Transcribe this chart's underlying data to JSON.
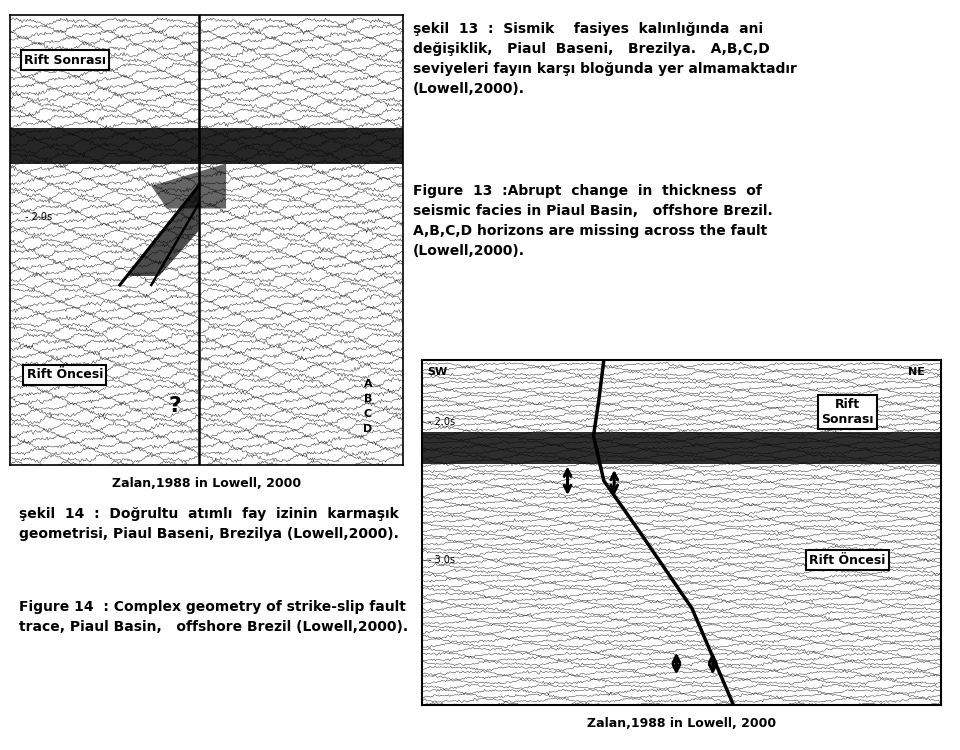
{
  "background_color": "#ffffff",
  "fig_width": 9.6,
  "fig_height": 7.5,
  "title_tr_bold": "şekil  13  :",
  "title_tr_rest": " Sismik    fasiyes  kalınlığında  ani\ndeğişiklik,   Piaul  Baseni,   Brezilya.   A,B,C,D\nseviyeleri fayın karşı bloğunda yer almamaktadır\n(Lowell,2000).",
  "title_tr_full": "şekil  13  :  Sismik    fasiyes  kalınlığında  ani\ndeğişiklik,   Piaul  Baseni,   Brezilya.   A,B,C,D\nseviyeleri fayın karşı bloğunda yer almamaktadır\n(Lowell,2000).",
  "title_en_bold": "Figure  13",
  "title_en_full": "Figure  13  :Abrupt  change  in  thickness  of\nseismic facies in Piaul Basin,   offshore Brezil.\nA,B,C,D horizons are missing across the fault\n(Lowell,2000).",
  "caption14_tr_full": "şekil  14  :  Doğrultu  atımlı  fay  izinin  karmaşık\ngeometrisi, Piaul Baseni, Brezilya (Lowell,2000).",
  "caption14_en_full": "Figure 14  : Complex geometry of strike-slip fault\ntrace, Piaul Basin,   offshore Brezil (Lowell,2000).",
  "credit1": "Zalan,1988 in Lowell, 2000",
  "credit2": "Zalan,1988 in Lowell, 2000",
  "label_rift_sonrasi_1": "Rift Sonrası",
  "label_rift_oncesi_1": "Rift Öncesi",
  "label_question": "?",
  "label_abcd": "A\nB\nC\nD",
  "label_sw": "SW",
  "label_ne": "NE",
  "label_rift_sonrasi_2": "Rift\nSonrası",
  "label_rift_oncesi_2": "Rift Öncesi",
  "label_2os_1": "- 2.0s",
  "label_2os_2": "- 2.0s",
  "label_3os": "- 3.0s"
}
